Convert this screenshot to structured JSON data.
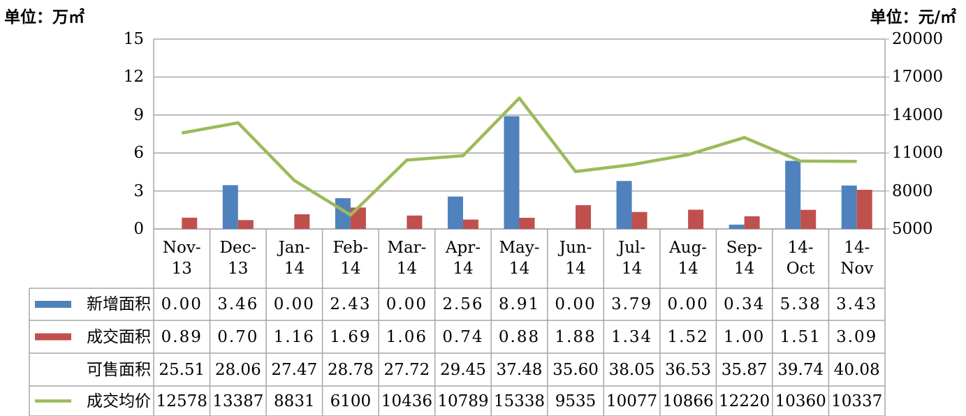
{
  "chart_data": {
    "type": "bar",
    "y_unit_label": "单位：万㎡",
    "y2_unit_label": "单位：元/㎡",
    "categories": [
      "Nov-\n13",
      "Dec-\n13",
      "Jan-\n14",
      "Feb-\n14",
      "Mar-\n14",
      "Apr-\n14",
      "May-\n14",
      "Jun-\n14",
      "Jul-\n14",
      "Aug-\n14",
      "Sep-\n14",
      "14-\nOct",
      "14-\nNov"
    ],
    "ylim": [
      0,
      15
    ],
    "yticks": [
      0,
      3,
      6,
      9,
      12,
      15
    ],
    "y2lim": [
      5000,
      20000
    ],
    "y2ticks": [
      5000,
      8000,
      11000,
      14000,
      17000,
      20000
    ],
    "grid": true,
    "series": [
      {
        "name": "新增面积",
        "type": "bar",
        "color": "#4f81bd",
        "values": [
          0,
          3.46,
          0,
          2.43,
          0,
          2.56,
          8.91,
          0,
          3.79,
          0,
          0.34,
          5.38,
          3.43
        ],
        "value_labels": [
          "0.00",
          "3.46",
          "0.00",
          "2.43",
          "0.00",
          "2.56",
          "8.91",
          "0.00",
          "3.79",
          "0.00",
          "0.34",
          "5.38",
          "3.43"
        ]
      },
      {
        "name": "成交面积",
        "type": "bar",
        "color": "#c0504d",
        "values": [
          0.89,
          0.7,
          1.16,
          1.69,
          1.06,
          0.74,
          0.88,
          1.88,
          1.34,
          1.52,
          1,
          1.51,
          3.09
        ],
        "value_labels": [
          "0.89",
          "0.70",
          "1.16",
          "1.69",
          "1.06",
          "0.74",
          "0.88",
          "1.88",
          "1.34",
          "1.52",
          "1.00",
          "1.51",
          "3.09"
        ]
      },
      {
        "name": "可售面积",
        "values": [
          25.51,
          28.06,
          27.47,
          28.78,
          27.72,
          29.45,
          37.48,
          35.6,
          38.05,
          36.53,
          35.87,
          39.74,
          40.08
        ],
        "value_labels": [
          "25.51",
          "28.06",
          "27.47",
          "28.78",
          "27.72",
          "29.45",
          "37.48",
          "35.60",
          "38.05",
          "36.53",
          "35.87",
          "39.74",
          "40.08"
        ]
      },
      {
        "name": "成交均价",
        "type": "line",
        "color": "#9bbb59",
        "axis": "y2",
        "values": [
          12578,
          13387,
          8831,
          6100,
          10436,
          10789,
          15338,
          9535,
          10077,
          10866,
          12220,
          10360,
          10337
        ]
      }
    ]
  }
}
